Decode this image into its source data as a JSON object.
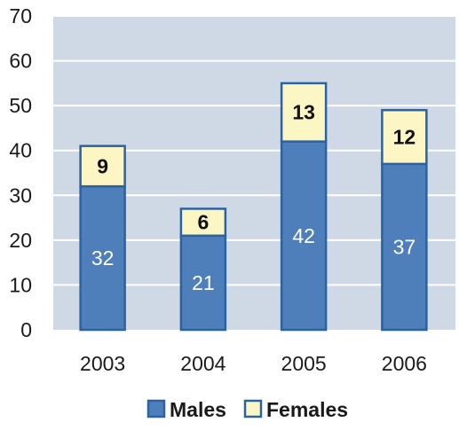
{
  "chart_data": {
    "type": "bar",
    "stacked": true,
    "categories": [
      "2003",
      "2004",
      "2005",
      "2006"
    ],
    "series": [
      {
        "name": "Males",
        "values": [
          32,
          21,
          42,
          37
        ],
        "color": "#4e7fba",
        "label_color": "#ffffff",
        "label_bold": false
      },
      {
        "name": "Females",
        "values": [
          9,
          6,
          13,
          12
        ],
        "color": "#fbf6c3",
        "label_color": "#111111",
        "label_bold": true
      }
    ],
    "title": "",
    "xlabel": "",
    "ylabel": "",
    "ylim": [
      0,
      70
    ],
    "yticks": [
      "0",
      "10",
      "20",
      "30",
      "40",
      "50",
      "60",
      "70"
    ],
    "grid": true,
    "legend_position": "bottom-center",
    "colors": {
      "plot_background": "#cfd9e6",
      "grid": "#ffffff",
      "bar_edge": "#2d62a0"
    }
  }
}
